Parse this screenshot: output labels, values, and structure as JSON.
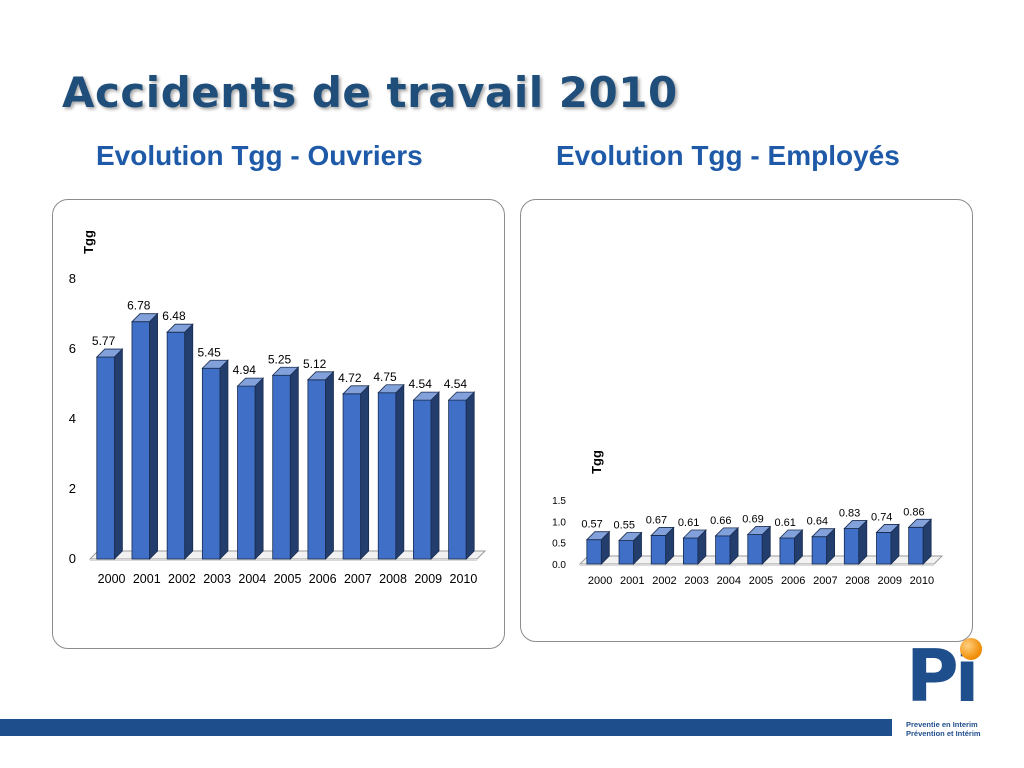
{
  "title": "Accidents de travail 2010",
  "subtitles": {
    "left": "Evolution Tgg - Ouvriers",
    "right": "Evolution Tgg - Employés"
  },
  "chart_data": [
    {
      "type": "bar",
      "title": "Evolution Tgg - Ouvriers",
      "ylabel": "Tgg",
      "xlabel": "",
      "categories": [
        "2000",
        "2001",
        "2002",
        "2003",
        "2004",
        "2005",
        "2006",
        "2007",
        "2008",
        "2009",
        "2010"
      ],
      "values": [
        5.77,
        6.78,
        6.48,
        5.45,
        4.94,
        5.25,
        5.12,
        4.72,
        4.75,
        4.54,
        4.54
      ],
      "ylim": [
        0,
        8
      ],
      "yticks": [
        "0",
        "2",
        "4",
        "6",
        "8"
      ],
      "bar_color": "#3f6fc6"
    },
    {
      "type": "bar",
      "title": "Evolution Tgg - Employés",
      "ylabel": "Tgg",
      "xlabel": "",
      "categories": [
        "2000",
        "2001",
        "2002",
        "2003",
        "2004",
        "2005",
        "2006",
        "2007",
        "2008",
        "2009",
        "2010"
      ],
      "values": [
        0.57,
        0.55,
        0.67,
        0.61,
        0.66,
        0.69,
        0.61,
        0.64,
        0.83,
        0.74,
        0.86
      ],
      "ylim": [
        0,
        1.5
      ],
      "yticks": [
        "0.0",
        "0.5",
        "1.0",
        "1.5"
      ],
      "bar_color": "#3f6fc6"
    }
  ],
  "logo": {
    "letters": "Pi",
    "line1": "Preventie en Interim",
    "line2": "Prévention et Intérim"
  }
}
